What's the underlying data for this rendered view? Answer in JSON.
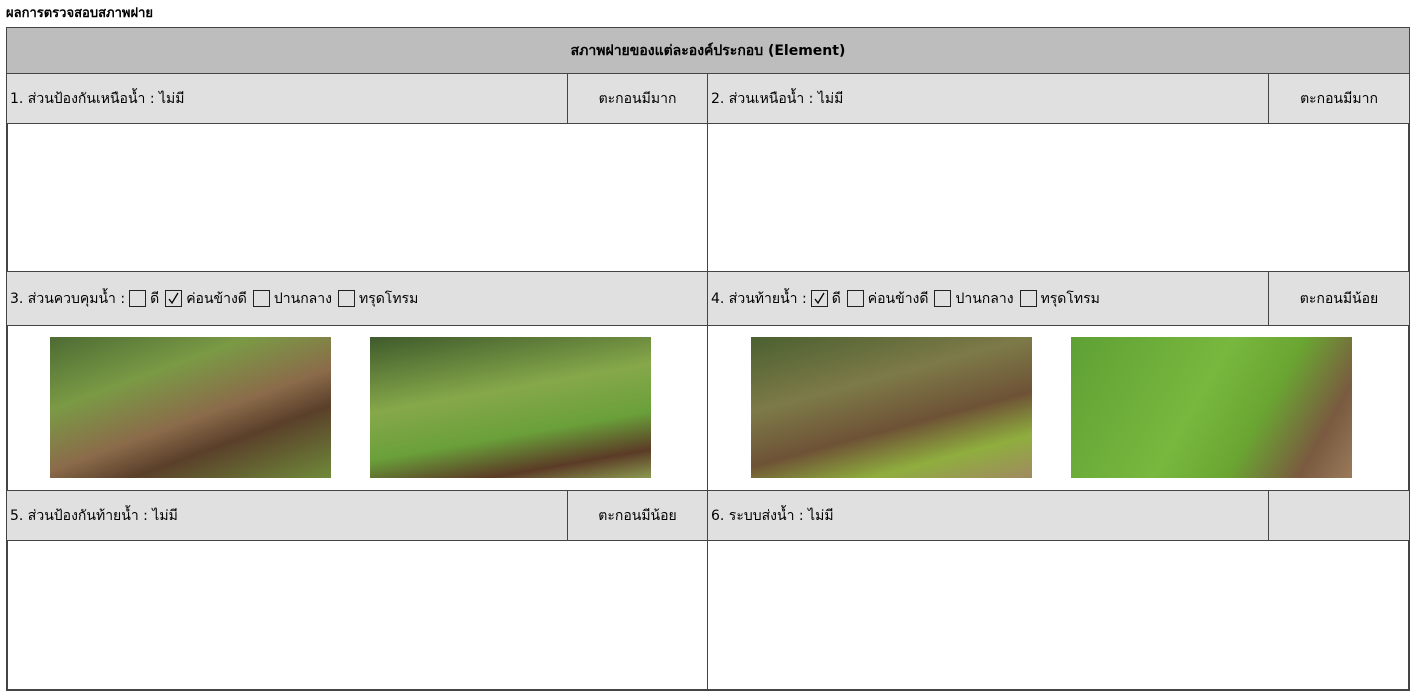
{
  "header": {
    "title": "ผลการตรวจสอบสภาพฝาย"
  },
  "table": {
    "title": "สภาพฝายของแต่ละองค์ประกอบ (Element)",
    "sections": [
      {
        "label": "1. ส่วนป้องกันเหนือน้ำ : ไม่มี",
        "note": "ตะกอนมีมาก"
      },
      {
        "label": "2. ส่วนเหนือน้ำ : ไม่มี",
        "note": "ตะกอนมีมาก"
      },
      {
        "label": "3. ส่วนควบคุมน้ำ :",
        "options": [
          {
            "label": "ดี",
            "checked": false
          },
          {
            "label": "ค่อนข้างดี",
            "checked": true
          },
          {
            "label": "ปานกลาง",
            "checked": false
          },
          {
            "label": "ทรุดโทรม",
            "checked": false
          }
        ]
      },
      {
        "label": "4. ส่วนท้ายน้ำ :",
        "options": [
          {
            "label": "ดี",
            "checked": true
          },
          {
            "label": "ค่อนข้างดี",
            "checked": false
          },
          {
            "label": "ปานกลาง",
            "checked": false
          },
          {
            "label": "ทรุดโทรม",
            "checked": false
          }
        ],
        "note": "ตะกอนมีน้อย"
      },
      {
        "label": "5. ส่วนป้องกันท้ายน้ำ : ไม่มี",
        "note": "ตะกอนมีน้อย"
      },
      {
        "label": "6. ระบบส่งน้ำ : ไม่มี"
      }
    ]
  }
}
